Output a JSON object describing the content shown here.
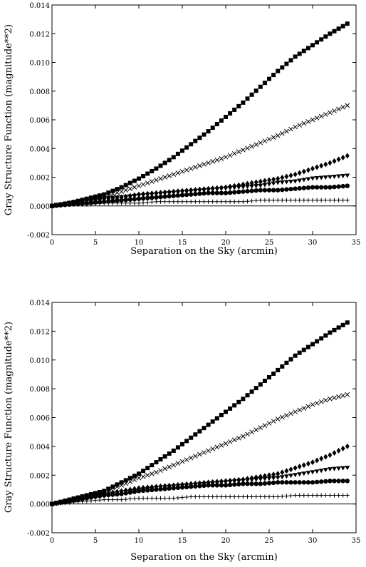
{
  "chart_data": [
    {
      "type": "scatter",
      "xlabel": "Separation on the Sky (arcmin)",
      "ylabel": "Gray Structure Function (magnitude**2)",
      "xlim": [
        0,
        35
      ],
      "ylim": [
        -0.002,
        0.014
      ],
      "xticks": [
        "0",
        "5",
        "10",
        "15",
        "20",
        "25",
        "30",
        "35"
      ],
      "yticks": [
        "-0.002",
        "0.000",
        "0.002",
        "0.004",
        "0.006",
        "0.008",
        "0.010",
        "0.012",
        "0.014"
      ],
      "zero_line": 0,
      "grid": false,
      "series": [
        {
          "marker": "square",
          "x": [
            0,
            2,
            4,
            6,
            8,
            10,
            12,
            14,
            16,
            18,
            20,
            22,
            24,
            26,
            28,
            30,
            32,
            34
          ],
          "y": [
            0.0,
            0.0002,
            0.0005,
            0.0008,
            0.0013,
            0.0019,
            0.0026,
            0.0034,
            0.0043,
            0.0052,
            0.0062,
            0.0072,
            0.0083,
            0.0094,
            0.0104,
            0.0112,
            0.012,
            0.0127
          ]
        },
        {
          "marker": "x",
          "x": [
            0,
            2,
            4,
            6,
            8,
            10,
            12,
            14,
            16,
            18,
            20,
            22,
            24,
            26,
            28,
            30,
            32,
            34
          ],
          "y": [
            0.0,
            0.0002,
            0.0004,
            0.0007,
            0.001,
            0.0014,
            0.0018,
            0.0022,
            0.0026,
            0.003,
            0.0034,
            0.0039,
            0.0044,
            0.0049,
            0.0055,
            0.006,
            0.0065,
            0.007
          ]
        },
        {
          "marker": "diamond",
          "x": [
            0,
            2,
            4,
            6,
            8,
            10,
            12,
            14,
            16,
            18,
            20,
            22,
            24,
            26,
            28,
            30,
            32,
            34
          ],
          "y": [
            0.0,
            0.0002,
            0.0004,
            0.0005,
            0.0006,
            0.0008,
            0.0009,
            0.001,
            0.0011,
            0.0012,
            0.0013,
            0.0015,
            0.0017,
            0.0019,
            0.0022,
            0.0026,
            0.003,
            0.0035
          ]
        },
        {
          "marker": "triangle-down",
          "x": [
            0,
            2,
            4,
            6,
            8,
            10,
            12,
            14,
            16,
            18,
            20,
            22,
            24,
            26,
            28,
            30,
            32,
            34
          ],
          "y": [
            0.0,
            0.0002,
            0.0003,
            0.0005,
            0.0006,
            0.0007,
            0.0008,
            0.0009,
            0.001,
            0.0011,
            0.0012,
            0.0013,
            0.0014,
            0.0016,
            0.0017,
            0.0019,
            0.002,
            0.0021
          ]
        },
        {
          "marker": "circle",
          "x": [
            0,
            2,
            4,
            6,
            8,
            10,
            12,
            14,
            16,
            18,
            20,
            22,
            24,
            26,
            28,
            30,
            32,
            34
          ],
          "y": [
            0.0,
            0.0001,
            0.0002,
            0.0003,
            0.0004,
            0.0005,
            0.0006,
            0.0007,
            0.0008,
            0.0009,
            0.0009,
            0.001,
            0.0011,
            0.0011,
            0.0012,
            0.0013,
            0.0013,
            0.0014
          ]
        },
        {
          "marker": "plus",
          "x": [
            0,
            2,
            4,
            6,
            8,
            10,
            12,
            14,
            16,
            18,
            20,
            22,
            24,
            26,
            28,
            30,
            32,
            34
          ],
          "y": [
            0.0,
            0.0001,
            0.0001,
            0.0002,
            0.0002,
            0.0002,
            0.0003,
            0.0003,
            0.0003,
            0.0003,
            0.0003,
            0.0003,
            0.0004,
            0.0004,
            0.0004,
            0.0004,
            0.0004,
            0.0004
          ]
        }
      ]
    },
    {
      "type": "scatter",
      "xlabel": "Separation on the Sky (arcmin)",
      "ylabel": "Gray Structure Function (magnitude**2)",
      "xlim": [
        0,
        35
      ],
      "ylim": [
        -0.002,
        0.014
      ],
      "xticks": [
        "0",
        "5",
        "10",
        "15",
        "20",
        "25",
        "30",
        "35"
      ],
      "yticks": [
        "-0.002",
        "0.000",
        "0.002",
        "0.004",
        "0.006",
        "0.008",
        "0.010",
        "0.012",
        "0.014"
      ],
      "zero_line": 0,
      "grid": false,
      "series": [
        {
          "marker": "square",
          "x": [
            0,
            2,
            4,
            6,
            8,
            10,
            12,
            14,
            16,
            18,
            20,
            22,
            24,
            26,
            28,
            30,
            32,
            34
          ],
          "y": [
            0.0,
            0.0003,
            0.0006,
            0.0009,
            0.0015,
            0.0021,
            0.0029,
            0.0037,
            0.0046,
            0.0055,
            0.0064,
            0.0073,
            0.0083,
            0.0093,
            0.0103,
            0.0111,
            0.0119,
            0.0126
          ]
        },
        {
          "marker": "x",
          "x": [
            0,
            2,
            4,
            6,
            8,
            10,
            12,
            14,
            16,
            18,
            20,
            22,
            24,
            26,
            28,
            30,
            32,
            34
          ],
          "y": [
            0.0,
            0.0002,
            0.0005,
            0.0009,
            0.0013,
            0.0018,
            0.0022,
            0.0027,
            0.0032,
            0.0037,
            0.0042,
            0.0047,
            0.0053,
            0.0059,
            0.0064,
            0.0069,
            0.0073,
            0.0076
          ]
        },
        {
          "marker": "diamond",
          "x": [
            0,
            2,
            4,
            6,
            8,
            10,
            12,
            14,
            16,
            18,
            20,
            22,
            24,
            26,
            28,
            30,
            32,
            34
          ],
          "y": [
            0.0,
            0.0002,
            0.0005,
            0.0007,
            0.0009,
            0.0011,
            0.0012,
            0.0013,
            0.0014,
            0.0015,
            0.0016,
            0.0017,
            0.0019,
            0.0021,
            0.0025,
            0.0029,
            0.0034,
            0.004
          ]
        },
        {
          "marker": "triangle-down",
          "x": [
            0,
            2,
            4,
            6,
            8,
            10,
            12,
            14,
            16,
            18,
            20,
            22,
            24,
            26,
            28,
            30,
            32,
            34
          ],
          "y": [
            0.0,
            0.0002,
            0.0004,
            0.0006,
            0.0008,
            0.0009,
            0.0011,
            0.0012,
            0.0013,
            0.0014,
            0.0015,
            0.0016,
            0.0017,
            0.0018,
            0.002,
            0.0022,
            0.0024,
            0.0025
          ]
        },
        {
          "marker": "circle",
          "x": [
            0,
            2,
            4,
            6,
            8,
            10,
            12,
            14,
            16,
            18,
            20,
            22,
            24,
            26,
            28,
            30,
            32,
            34
          ],
          "y": [
            0.0,
            0.0002,
            0.0004,
            0.0006,
            0.0007,
            0.0009,
            0.001,
            0.0011,
            0.0012,
            0.0013,
            0.0013,
            0.0014,
            0.0014,
            0.0015,
            0.0015,
            0.0015,
            0.0016,
            0.0016
          ]
        },
        {
          "marker": "plus",
          "x": [
            0,
            2,
            4,
            6,
            8,
            10,
            12,
            14,
            16,
            18,
            20,
            22,
            24,
            26,
            28,
            30,
            32,
            34
          ],
          "y": [
            0.0,
            0.0001,
            0.0002,
            0.0003,
            0.0003,
            0.0004,
            0.0004,
            0.0004,
            0.0005,
            0.0005,
            0.0005,
            0.0005,
            0.0005,
            0.0005,
            0.0006,
            0.0006,
            0.0006,
            0.0006
          ]
        }
      ]
    }
  ]
}
